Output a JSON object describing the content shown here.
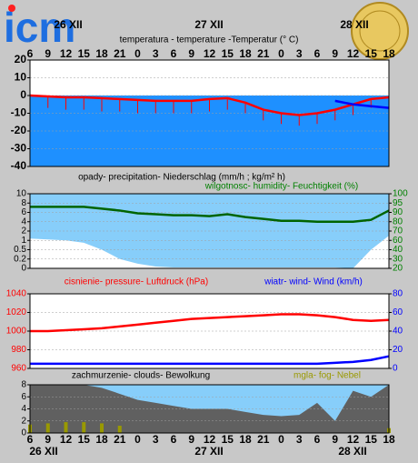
{
  "logo": "icm",
  "chart_data": [
    {
      "type": "line",
      "titles": [
        {
          "text": "temperatura - temperature -Temperatur (° C)",
          "color": "#000000"
        }
      ],
      "categories": [
        "6",
        "9",
        "12",
        "15",
        "18",
        "21",
        "0",
        "3",
        "6",
        "9",
        "12",
        "15",
        "18",
        "21",
        "0",
        "3",
        "6",
        "9",
        "12",
        "15",
        "18"
      ],
      "date_labels": [
        "26 XII",
        "27 XII",
        "28 XII"
      ],
      "ylim": [
        -40,
        20
      ],
      "yticks": [
        -40,
        -30,
        -20,
        -10,
        0,
        10,
        20
      ],
      "grid": true,
      "background": "#ffffff",
      "below_zero_color": "#1e90ff",
      "ytick_color": "#000000",
      "series": [
        {
          "color": "#ff0000",
          "marks": "line",
          "values": [
            0,
            -0.5,
            -1,
            -1,
            -1.5,
            -2,
            -2.5,
            -3,
            -3,
            -3,
            -2,
            -1.5,
            -4,
            -8,
            -10,
            -11,
            -10,
            -8,
            -5,
            -2,
            -1
          ]
        },
        {
          "color": "#ff0000",
          "marks": "stick",
          "values": [
            -6,
            -7,
            -8,
            -8,
            -9,
            -9,
            -10,
            -10,
            -10,
            -10,
            -9,
            -8,
            -10,
            -14,
            -16,
            -17,
            -16,
            -14,
            -11,
            -7,
            -4
          ]
        },
        {
          "color": "#0000ff",
          "marks": "line",
          "values": [
            null,
            null,
            null,
            null,
            null,
            null,
            null,
            null,
            null,
            null,
            null,
            null,
            null,
            null,
            null,
            null,
            null,
            -3,
            -5,
            -6,
            -7
          ]
        }
      ]
    },
    {
      "type": "line",
      "titles": [
        {
          "text": "opady- precipitation- Niederschlag (mm/h ; kg/m² h)",
          "color": "#000000"
        },
        {
          "text": "wilgotnosc- humidity- Feuchtigkeit (%)",
          "color": "#008000"
        }
      ],
      "ylim": [
        0,
        10
      ],
      "yticks": [
        0,
        0.2,
        0.5,
        1,
        2,
        4,
        6,
        8,
        10
      ],
      "yscale": "tick-spaced",
      "y2lim": [
        20,
        100
      ],
      "y2ticks": [
        20,
        30,
        40,
        60,
        70,
        80,
        90,
        95,
        100
      ],
      "y2scale": "tick-spaced",
      "grid": true,
      "background": "#87cefa",
      "ytick_color": "#000000",
      "y2tick_color": "#008000",
      "series": [
        {
          "color": "#ffffff",
          "marks": "area",
          "axis": "y2",
          "values": [
            62,
            61,
            60,
            55,
            40,
            30,
            25,
            22,
            21,
            21,
            21,
            21,
            21,
            21,
            21,
            21,
            21,
            21,
            20,
            40,
            65
          ]
        },
        {
          "color": "#006400",
          "marks": "line",
          "axis": "y2",
          "values": [
            93,
            93,
            93,
            93,
            92,
            91,
            89,
            88,
            87,
            87,
            86,
            88,
            85,
            83,
            81,
            81,
            80,
            80,
            80,
            82,
            91
          ]
        }
      ]
    },
    {
      "type": "line",
      "titles": [
        {
          "text": "cisnienie- pressure- Luftdruck (hPa)",
          "color": "#ff0000"
        },
        {
          "text": "wiatr- wind- Wind (km/h)",
          "color": "#0000ff"
        }
      ],
      "ylim": [
        960,
        1040
      ],
      "yticks": [
        960,
        980,
        1000,
        1020,
        1040
      ],
      "y2lim": [
        0,
        80
      ],
      "y2ticks": [
        0,
        20,
        40,
        60,
        80
      ],
      "grid": true,
      "background": "#ffffff",
      "ytick_color": "#ff0000",
      "y2tick_color": "#0000ff",
      "series": [
        {
          "color": "#ff0000",
          "marks": "line",
          "values": [
            1000,
            1000,
            1001,
            1002,
            1003,
            1005,
            1007,
            1009,
            1011,
            1013,
            1014,
            1015,
            1016,
            1017,
            1018,
            1018,
            1017,
            1015,
            1012,
            1011,
            1012
          ]
        },
        {
          "color": "#0000ff",
          "marks": "line",
          "axis": "y2",
          "values": [
            5,
            5,
            5,
            5,
            5,
            5,
            5,
            5,
            5,
            5,
            5,
            5,
            5,
            5,
            5,
            5,
            5,
            6,
            7,
            9,
            13
          ]
        }
      ]
    },
    {
      "type": "line",
      "titles": [
        {
          "text": "zachmurzenie- clouds- Bewolkung",
          "color": "#000000"
        },
        {
          "text": "mgla- fog- Nebel",
          "color": "#999900"
        }
      ],
      "categories": [
        "6",
        "9",
        "12",
        "15",
        "18",
        "21",
        "0",
        "3",
        "6",
        "9",
        "12",
        "15",
        "18",
        "21",
        "0",
        "3",
        "6",
        "9",
        "12",
        "15",
        "18"
      ],
      "date_labels": [
        "26 XII",
        "27 XII",
        "28 XII"
      ],
      "ylim": [
        0,
        8
      ],
      "yticks": [
        0,
        2,
        4,
        6,
        8
      ],
      "grid": true,
      "background": "#87cefa",
      "ytick_color": "#000000",
      "series": [
        {
          "color": "#606060",
          "marks": "area",
          "values": [
            8,
            8,
            8,
            8,
            7.5,
            6.5,
            5.5,
            5,
            4.5,
            4,
            4,
            4,
            3.5,
            3,
            2.8,
            3,
            5,
            2,
            7,
            6,
            8
          ]
        },
        {
          "color": "#999900",
          "marks": "bar",
          "values": [
            1.4,
            1.6,
            1.8,
            1.8,
            1.6,
            1.2,
            0,
            0,
            0,
            0,
            0,
            0,
            0,
            0,
            0,
            0,
            0,
            0,
            0,
            0,
            0.8
          ]
        }
      ]
    }
  ]
}
